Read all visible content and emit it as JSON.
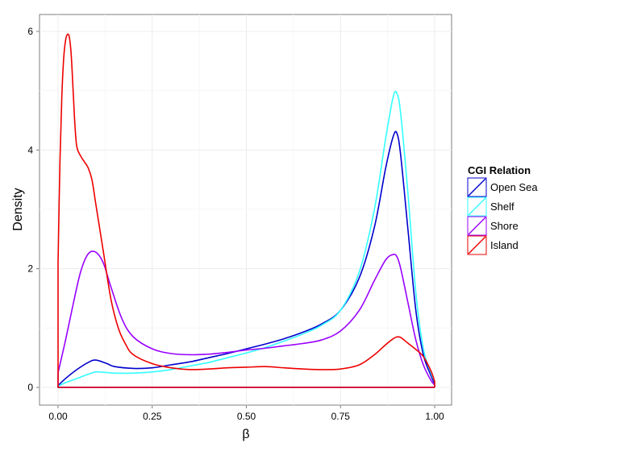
{
  "chart_data": {
    "type": "line",
    "title": "",
    "xlabel": "β",
    "ylabel": "Density",
    "xlim": [
      0,
      1
    ],
    "ylim": [
      0,
      6.3
    ],
    "xticks": [
      0,
      0.25,
      0.5,
      0.75,
      1
    ],
    "xtick_labels": [
      "0.00",
      "0.25",
      "0.50",
      "0.75",
      "1.00"
    ],
    "yticks": [
      0,
      2,
      4,
      6
    ],
    "ytick_labels": [
      "0",
      "2",
      "4",
      "6"
    ],
    "grid": true,
    "legend": {
      "title": "CGI Relation",
      "placement": "right"
    },
    "series": [
      {
        "name": "Open Sea",
        "color": "#0000cc",
        "x": [
          0,
          0.02,
          0.05,
          0.08,
          0.1,
          0.13,
          0.15,
          0.2,
          0.25,
          0.3,
          0.35,
          0.4,
          0.45,
          0.5,
          0.55,
          0.6,
          0.65,
          0.7,
          0.75,
          0.8,
          0.84,
          0.87,
          0.89,
          0.9,
          0.91,
          0.93,
          0.95,
          0.97,
          0.99,
          1
        ],
        "y": [
          0.03,
          0.15,
          0.3,
          0.42,
          0.46,
          0.4,
          0.35,
          0.32,
          0.33,
          0.38,
          0.43,
          0.5,
          0.57,
          0.65,
          0.73,
          0.82,
          0.93,
          1.07,
          1.3,
          1.85,
          2.7,
          3.7,
          4.23,
          4.28,
          3.9,
          2.6,
          1.3,
          0.55,
          0.2,
          0.06
        ]
      },
      {
        "name": "Shelf",
        "color": "#33ffff",
        "x": [
          0,
          0.02,
          0.05,
          0.08,
          0.1,
          0.13,
          0.15,
          0.2,
          0.25,
          0.3,
          0.35,
          0.4,
          0.45,
          0.5,
          0.55,
          0.6,
          0.65,
          0.7,
          0.75,
          0.8,
          0.84,
          0.87,
          0.89,
          0.9,
          0.91,
          0.93,
          0.95,
          0.97,
          0.99,
          1
        ],
        "y": [
          0.02,
          0.08,
          0.15,
          0.22,
          0.26,
          0.25,
          0.24,
          0.24,
          0.26,
          0.3,
          0.36,
          0.42,
          0.5,
          0.58,
          0.67,
          0.78,
          0.9,
          1.05,
          1.3,
          1.95,
          3.0,
          4.2,
          4.9,
          4.95,
          4.6,
          3.2,
          1.6,
          0.65,
          0.25,
          0.1
        ]
      },
      {
        "name": "Shore",
        "color": "#9900ff",
        "x": [
          0,
          0.02,
          0.04,
          0.06,
          0.08,
          0.1,
          0.12,
          0.14,
          0.17,
          0.2,
          0.25,
          0.3,
          0.35,
          0.4,
          0.45,
          0.5,
          0.55,
          0.6,
          0.65,
          0.7,
          0.75,
          0.8,
          0.84,
          0.87,
          0.89,
          0.9,
          0.91,
          0.93,
          0.95,
          0.97,
          0.99,
          1
        ],
        "y": [
          0.25,
          0.8,
          1.4,
          1.95,
          2.25,
          2.28,
          2.1,
          1.7,
          1.15,
          0.85,
          0.65,
          0.57,
          0.55,
          0.56,
          0.59,
          0.63,
          0.66,
          0.7,
          0.74,
          0.8,
          0.95,
          1.3,
          1.8,
          2.15,
          2.24,
          2.2,
          2.0,
          1.4,
          0.8,
          0.38,
          0.12,
          0.04
        ]
      },
      {
        "name": "Island",
        "color": "#ee0000",
        "x": [
          0,
          0.005,
          0.01,
          0.015,
          0.02,
          0.025,
          0.03,
          0.035,
          0.04,
          0.045,
          0.05,
          0.06,
          0.07,
          0.08,
          0.09,
          0.1,
          0.12,
          0.14,
          0.16,
          0.18,
          0.2,
          0.25,
          0.3,
          0.35,
          0.4,
          0.45,
          0.5,
          0.55,
          0.6,
          0.65,
          0.7,
          0.75,
          0.8,
          0.84,
          0.87,
          0.89,
          0.9,
          0.91,
          0.93,
          0.95,
          0.97,
          0.99,
          1
        ],
        "y": [
          2.1,
          3.8,
          4.9,
          5.55,
          5.85,
          5.95,
          5.9,
          5.6,
          5.0,
          4.4,
          4.05,
          3.9,
          3.8,
          3.7,
          3.5,
          3.1,
          2.3,
          1.5,
          1.0,
          0.72,
          0.55,
          0.4,
          0.33,
          0.3,
          0.31,
          0.33,
          0.34,
          0.35,
          0.33,
          0.31,
          0.3,
          0.31,
          0.38,
          0.55,
          0.72,
          0.82,
          0.85,
          0.84,
          0.74,
          0.64,
          0.52,
          0.28,
          0.1
        ]
      }
    ]
  }
}
